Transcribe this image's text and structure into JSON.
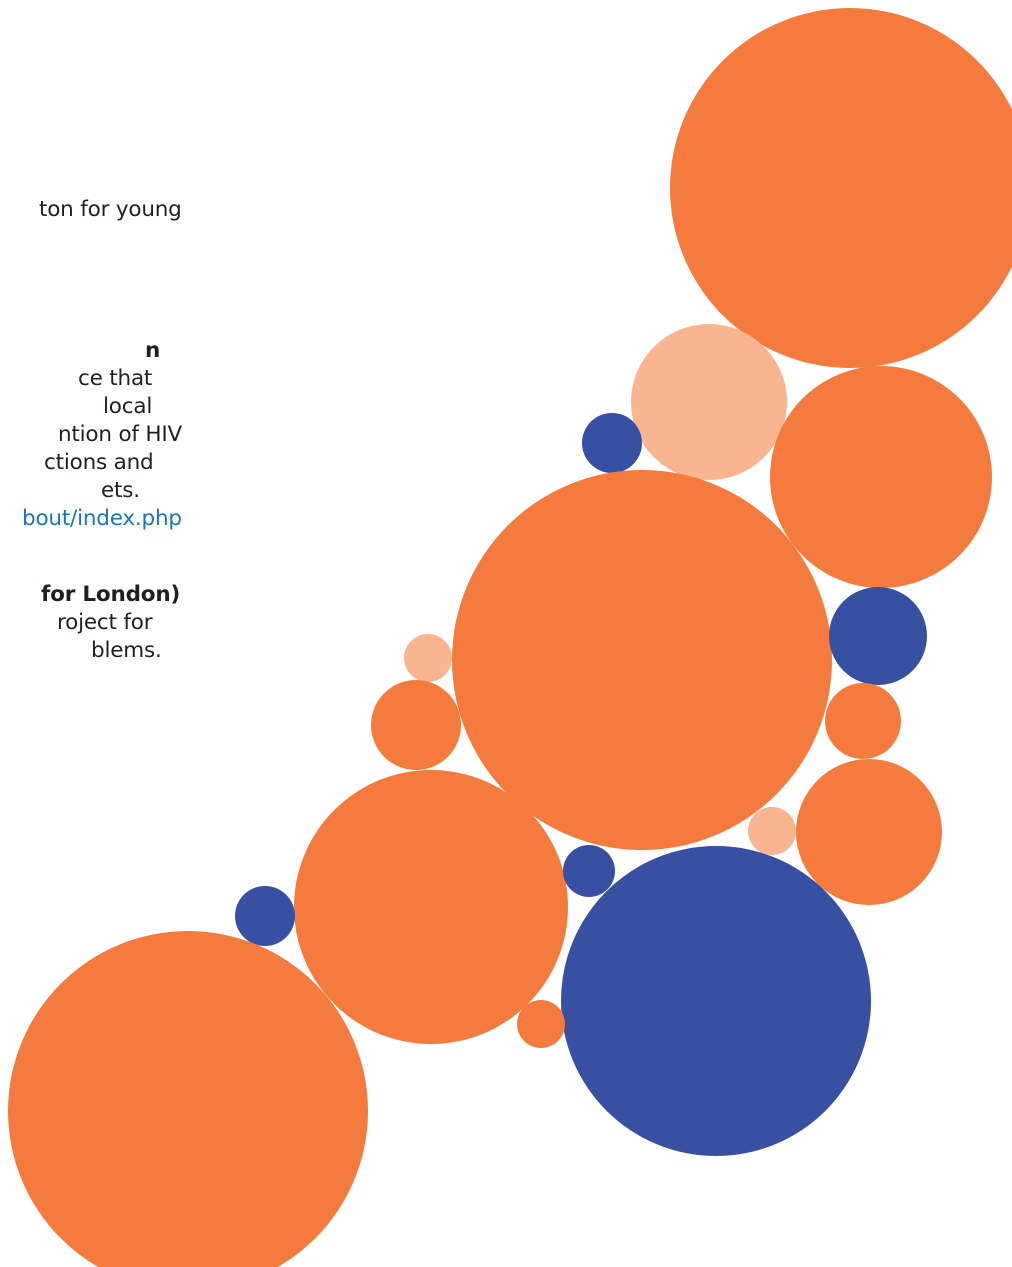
{
  "text_lines": {
    "l1": "ton for young",
    "h1": "n",
    "l2": "ce that",
    "l3": " local",
    "l4": "ntion of HIV",
    "l5": "ctions and",
    "l6": "ets.",
    "link": "bout/index.php",
    "h2": " for London)",
    "l7": "roject for",
    "l8": "blems."
  },
  "colors": {
    "orange": "#f47b3d",
    "light_orange": "#f9b58f",
    "blue": "#3750a1",
    "link": "#1a75bb",
    "text": "#231f20"
  }
}
